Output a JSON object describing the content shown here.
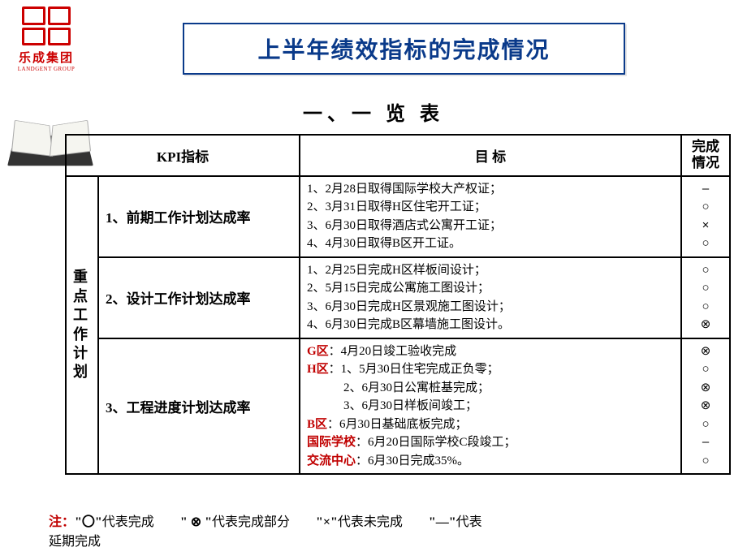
{
  "logo": {
    "main": "乐成集团",
    "sub": "LANDGENT GROUP"
  },
  "title": "上半年绩效指标的完成情况",
  "subtitle": "一、一 览 表",
  "table": {
    "headers": {
      "kpi": "KPI指标",
      "target": "目 标",
      "status": "完成\n情况"
    },
    "category": "重点工作计划",
    "rows": [
      {
        "kpi": "1、前期工作计划达成率",
        "targets": [
          "1、2月28日取得国际学校大产权证；",
          "2、3月31日取得H区住宅开工证；",
          "3、6月30日取得酒店式公寓开工证；",
          "4、4月30日取得B区开工证。"
        ],
        "status": [
          "–",
          "○",
          "×",
          "○"
        ]
      },
      {
        "kpi": "2、设计工作计划达成率",
        "targets": [
          "1、2月25日完成H区样板间设计；",
          "2、5月15日完成公寓施工图设计；",
          "3、6月30日完成H区景观施工图设计；",
          "4、6月30日完成B区幕墙施工图设计。"
        ],
        "status": [
          "○",
          "○",
          "○",
          "⊗"
        ]
      },
      {
        "kpi": "3、工程进度计划达成率",
        "target_segments": [
          {
            "label": "G区",
            "text": "：4月20日竣工验收完成"
          },
          {
            "label": "H区",
            "text": "：1、5月30日住宅完成正负零；"
          },
          {
            "label": "",
            "text": "　　　2、6月30日公寓桩基完成；"
          },
          {
            "label": "",
            "text": "　　　3、6月30日样板间竣工；"
          },
          {
            "label": "B区",
            "text": "：6月30日基础底板完成；"
          },
          {
            "label": "国际学校",
            "text": "：6月20日国际学校C段竣工；"
          },
          {
            "label": "交流中心",
            "text": "：6月30日完成35%。"
          }
        ],
        "status": [
          "⊗",
          "○",
          "⊗",
          "⊗",
          "○",
          "–",
          "○"
        ]
      }
    ]
  },
  "legend": {
    "prefix": "注：",
    "items": [
      {
        "sym": "\"〇\"",
        "desc": "代表完成"
      },
      {
        "sym": "\" ⊗ \"",
        "desc": "代表完成部分"
      },
      {
        "sym": "\"×\"",
        "desc": "代表未完成"
      },
      {
        "sym": "\"—\"",
        "desc": "代表"
      }
    ],
    "tail": "延期完成"
  },
  "colors": {
    "title_border": "#0a3a8a",
    "accent_red": "#c00000",
    "logo_red": "#cc0000",
    "border": "#000000",
    "bg": "#ffffff"
  }
}
